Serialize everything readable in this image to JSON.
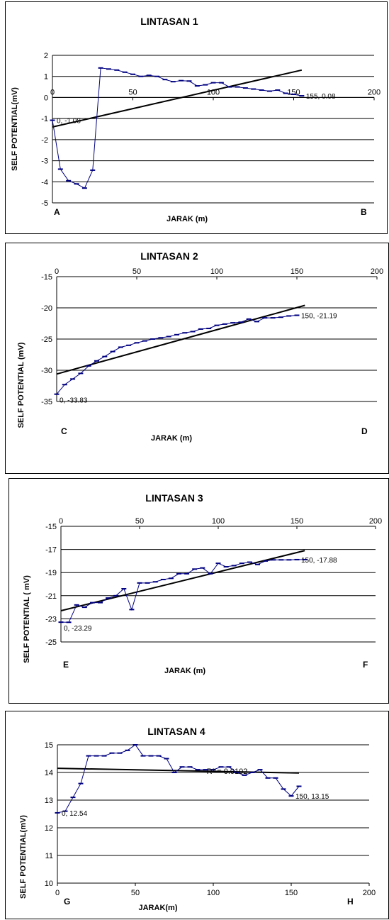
{
  "colors": {
    "series": "#000080",
    "trend": "#000000",
    "grid": "#000000"
  },
  "chart_data": [
    {
      "type": "line",
      "title": "LINTASAN 1",
      "xlabel": "JARAK (m)",
      "ylabel": "SELF POTENTIAL(mV)",
      "xlim": [
        0,
        200
      ],
      "ylim": [
        -5,
        2
      ],
      "xticks": [
        "0",
        "50",
        "100",
        "150",
        "200"
      ],
      "yticks": [
        "2",
        "1",
        "0",
        "-1",
        "-2",
        "-3",
        "-4",
        "-5"
      ],
      "corner_left": "A",
      "corner_right": "B",
      "x": [
        0,
        5,
        10,
        15,
        20,
        25,
        30,
        35,
        40,
        45,
        50,
        55,
        60,
        65,
        70,
        75,
        80,
        85,
        90,
        95,
        100,
        105,
        110,
        115,
        120,
        125,
        130,
        135,
        140,
        145,
        150,
        155
      ],
      "y": [
        -1.08,
        -3.4,
        -3.95,
        -4.1,
        -4.3,
        -3.45,
        1.4,
        1.35,
        1.3,
        1.2,
        1.1,
        1.0,
        1.05,
        1.0,
        0.85,
        0.75,
        0.8,
        0.78,
        0.55,
        0.6,
        0.7,
        0.7,
        0.5,
        0.5,
        0.45,
        0.4,
        0.35,
        0.3,
        0.35,
        0.2,
        0.15,
        0.08
      ],
      "trend": {
        "x": [
          0,
          155
        ],
        "y": [
          -1.4,
          1.3
        ]
      },
      "data_labels": [
        {
          "index": 0,
          "text": "0, -1.08",
          "pos": "right"
        },
        {
          "index": 31,
          "text": "155, 0.08",
          "pos": "right"
        }
      ]
    },
    {
      "type": "line",
      "title": "LINTASAN 2",
      "xlabel": "JARAK (m)",
      "ylabel": "SELF POTENTIAL (mV)",
      "xlim": [
        0,
        200
      ],
      "ylim": [
        -35,
        -15
      ],
      "xticks": [
        "0",
        "50",
        "100",
        "150",
        "200"
      ],
      "yticks": [
        "-15",
        "-20",
        "-25",
        "-30",
        "-35"
      ],
      "corner_left": "C",
      "corner_right": "D",
      "x": [
        0,
        5,
        10,
        15,
        20,
        25,
        30,
        35,
        40,
        45,
        50,
        55,
        60,
        65,
        70,
        75,
        80,
        85,
        90,
        95,
        100,
        105,
        110,
        115,
        120,
        125,
        130,
        135,
        140,
        145,
        150
      ],
      "y": [
        -33.83,
        -32.3,
        -31.4,
        -30.5,
        -29.3,
        -28.5,
        -27.8,
        -27.0,
        -26.3,
        -26.0,
        -25.6,
        -25.3,
        -25.0,
        -24.8,
        -24.6,
        -24.3,
        -24.0,
        -23.8,
        -23.4,
        -23.3,
        -22.8,
        -22.6,
        -22.4,
        -22.3,
        -21.8,
        -22.2,
        -21.6,
        -21.6,
        -21.5,
        -21.3,
        -21.19
      ],
      "trend": {
        "x": [
          0,
          155
        ],
        "y": [
          -30.6,
          -19.6
        ]
      },
      "data_labels": [
        {
          "index": 0,
          "text": "0, -33.83",
          "pos": "below"
        },
        {
          "index": 30,
          "text": "150, -21.19",
          "pos": "right"
        }
      ]
    },
    {
      "type": "line",
      "title": "LINTASAN 3",
      "xlabel": "JARAK (m)",
      "ylabel": "SELF POTENTIAL ( mV)",
      "xlim": [
        0,
        200
      ],
      "ylim": [
        -25,
        -15
      ],
      "xticks": [
        "0",
        "50",
        "100",
        "150",
        "200"
      ],
      "yticks": [
        "-15",
        "-17",
        "-19",
        "-21",
        "-23",
        "-25"
      ],
      "corner_left": "E",
      "corner_right": "F",
      "x": [
        0,
        5,
        10,
        15,
        20,
        25,
        30,
        35,
        40,
        45,
        50,
        55,
        60,
        65,
        70,
        75,
        80,
        85,
        90,
        95,
        100,
        105,
        110,
        115,
        120,
        125,
        130,
        135,
        140,
        145,
        150,
        155
      ],
      "y": [
        -23.29,
        -23.3,
        -21.8,
        -22.0,
        -21.6,
        -21.6,
        -21.2,
        -21.0,
        -20.4,
        -22.2,
        -19.9,
        -19.9,
        -19.8,
        -19.6,
        -19.5,
        -19.1,
        -19.1,
        -18.7,
        -18.6,
        -19.1,
        -18.2,
        -18.5,
        -18.4,
        -18.2,
        -18.1,
        -18.3,
        -18.0,
        -17.9,
        -17.9,
        -17.9,
        -17.88,
        -17.88
      ],
      "trend": {
        "x": [
          0,
          155
        ],
        "y": [
          -22.3,
          -17.1
        ]
      },
      "data_labels": [
        {
          "index": 0,
          "text": "0, -23.29",
          "pos": "below"
        },
        {
          "index": 30,
          "text": "150, -17.88",
          "pos": "right"
        }
      ]
    },
    {
      "type": "line",
      "title": "LINTASAN 4",
      "xlabel": "JARAK(m)",
      "ylabel": "SELF POTENTIAL(mV)",
      "xlim": [
        0,
        200
      ],
      "ylim": [
        10,
        15
      ],
      "xticks": [
        "0",
        "50",
        "100",
        "150",
        "200"
      ],
      "yticks": [
        "15",
        "14",
        "13",
        "12",
        "11",
        "10"
      ],
      "corner_left": "G",
      "corner_right": "H",
      "x": [
        0,
        5,
        10,
        15,
        20,
        25,
        30,
        35,
        40,
        45,
        50,
        55,
        60,
        65,
        70,
        75,
        80,
        85,
        90,
        95,
        100,
        105,
        110,
        115,
        120,
        125,
        130,
        135,
        140,
        145,
        150,
        155
      ],
      "y": [
        12.54,
        12.6,
        13.1,
        13.6,
        14.6,
        14.6,
        14.6,
        14.7,
        14.7,
        14.8,
        15.0,
        14.6,
        14.6,
        14.6,
        14.5,
        14.0,
        14.2,
        14.2,
        14.1,
        14.1,
        14.1,
        14.2,
        14.2,
        14.0,
        13.9,
        14.0,
        14.1,
        13.8,
        13.8,
        13.4,
        13.15,
        13.5
      ],
      "trend": {
        "x": [
          0,
          155
        ],
        "y": [
          14.15,
          13.98
        ]
      },
      "trend_label": "R² = 0.0102",
      "data_labels": [
        {
          "index": 0,
          "text": "0, 12.54",
          "pos": "right"
        },
        {
          "index": 30,
          "text": "150, 13.15",
          "pos": "right"
        }
      ]
    }
  ]
}
